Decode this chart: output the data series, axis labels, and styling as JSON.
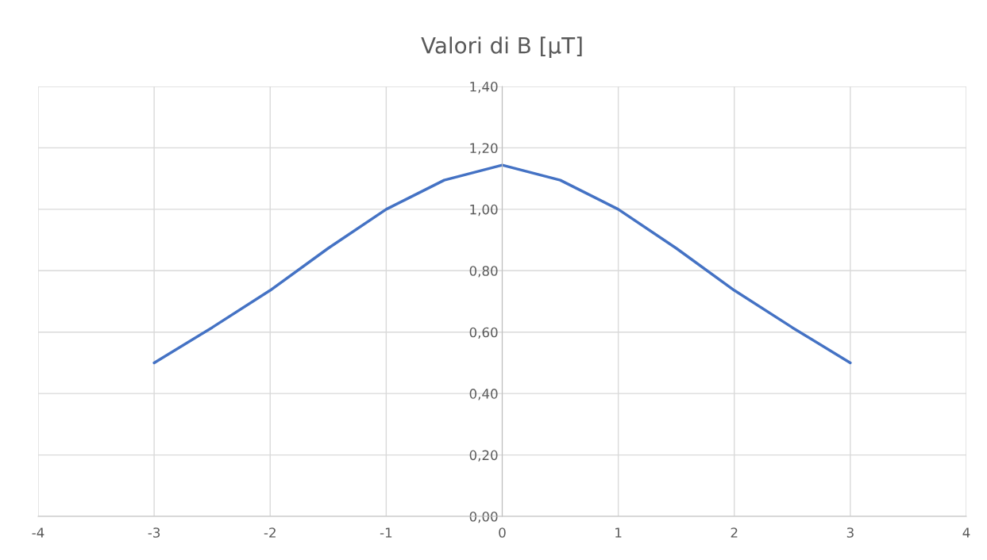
{
  "chart_data": {
    "type": "line",
    "title": "Valori di B [µT]",
    "x": [
      -3,
      -2.5,
      -2,
      -1.5,
      -1,
      -0.5,
      0,
      0.5,
      1,
      1.5,
      2,
      2.5,
      3
    ],
    "series": [
      {
        "color": "#4472c4",
        "values": [
          0.5,
          0.615,
          0.736,
          0.873,
          1.0,
          1.095,
          1.144,
          1.095,
          1.0,
          0.873,
          0.736,
          0.615,
          0.5
        ]
      }
    ],
    "xlim": [
      -4,
      4
    ],
    "xticks": [
      -4,
      -3,
      -2,
      -1,
      0,
      1,
      2,
      3,
      4
    ],
    "ylim": [
      0,
      1.4
    ],
    "yticks": [
      {
        "value": 0,
        "label": "0,00"
      },
      {
        "value": 0.2,
        "label": "0,20"
      },
      {
        "value": 0.4,
        "label": "0,40"
      },
      {
        "value": 0.6,
        "label": "0,60"
      },
      {
        "value": 0.8,
        "label": "0,80"
      },
      {
        "value": 1.0,
        "label": "1,00"
      },
      {
        "value": 1.2,
        "label": "1,20"
      },
      {
        "value": 1.4,
        "label": "1,40"
      }
    ],
    "grid": true,
    "marker": "none",
    "line_style": "solid"
  }
}
